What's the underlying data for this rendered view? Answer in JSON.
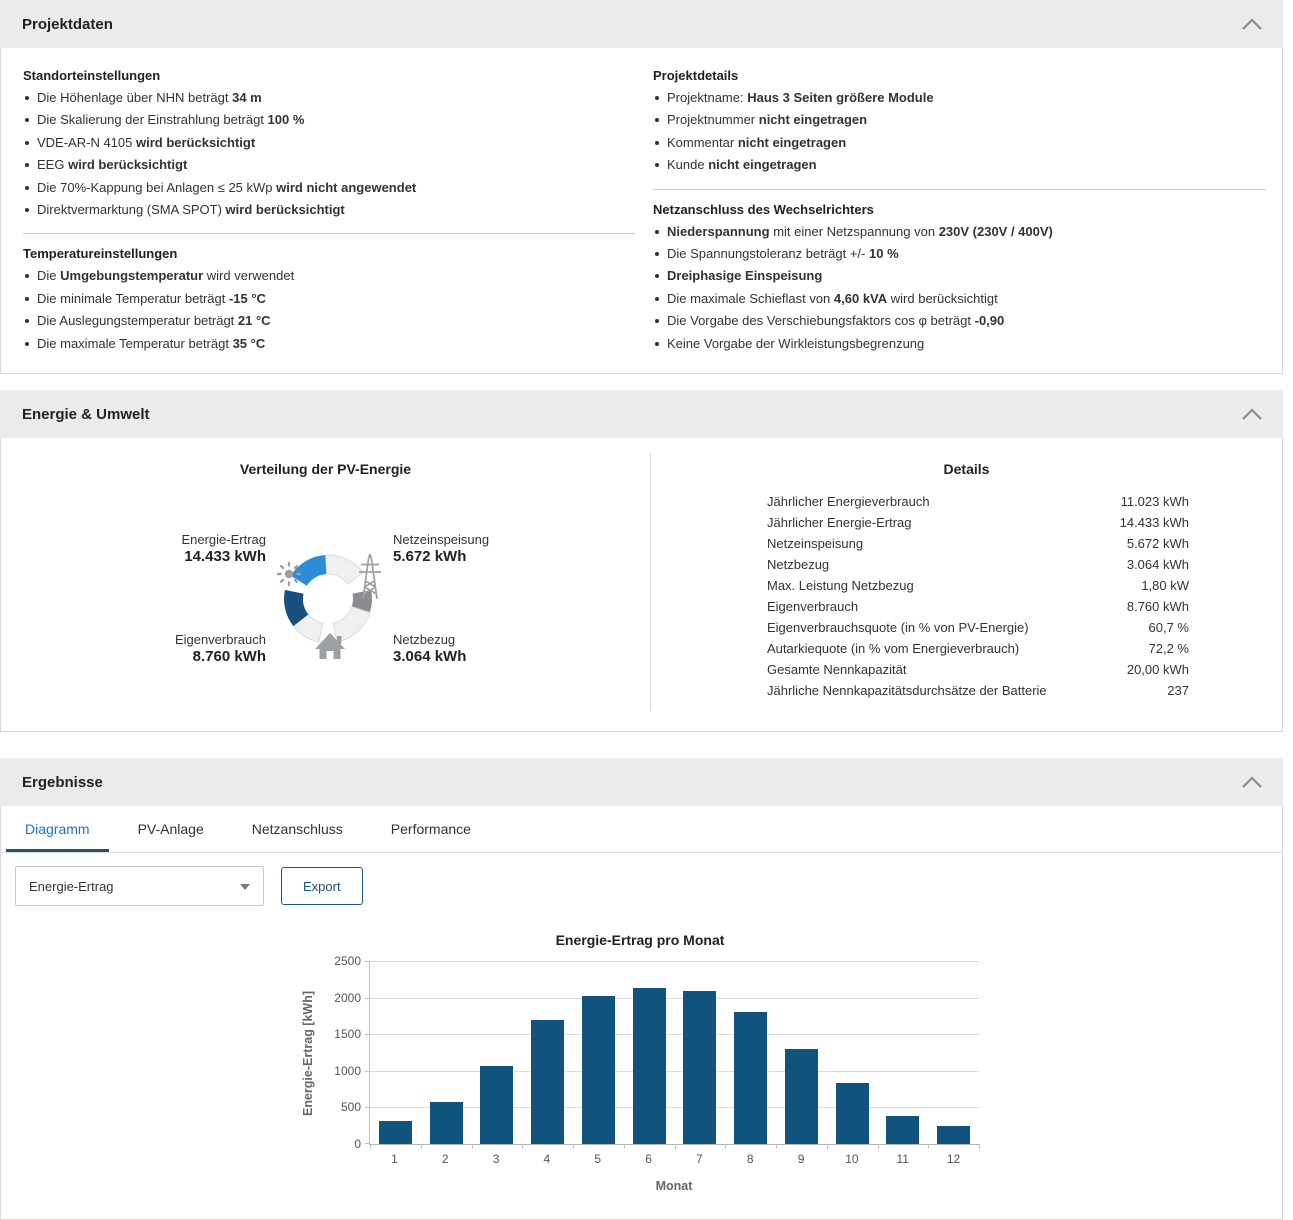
{
  "colors": {
    "accent_blue": "#2b8cd8",
    "dark_blue": "#1a4e7e",
    "mid_gray": "#8a8c8f",
    "light_segment": "#eff0f2",
    "light_segment_border": "#d9dbdd",
    "icon_gray": "#9ca0a3",
    "bar_blue": "#10547e",
    "active_tab": "#2272b9",
    "header_bg": "#ebebeb"
  },
  "projektdaten": {
    "title": "Projektdaten",
    "standort": {
      "heading": "Standorteinstellungen",
      "items": [
        [
          {
            "t": "Die Höhenlage über NHN beträgt ",
            "b": false
          },
          {
            "t": "34 m",
            "b": true
          }
        ],
        [
          {
            "t": "Die Skalierung der Einstrahlung beträgt ",
            "b": false
          },
          {
            "t": "100 %",
            "b": true
          }
        ],
        [
          {
            "t": "VDE-AR-N 4105 ",
            "b": false
          },
          {
            "t": "wird berücksichtigt",
            "b": true
          }
        ],
        [
          {
            "t": "EEG ",
            "b": false
          },
          {
            "t": "wird berücksichtigt",
            "b": true
          }
        ],
        [
          {
            "t": "Die 70%-Kappung bei Anlagen ≤ 25 kWp ",
            "b": false
          },
          {
            "t": "wird nicht angewendet",
            "b": true
          }
        ],
        [
          {
            "t": "Direktvermarktung (SMA SPOT) ",
            "b": false
          },
          {
            "t": "wird berücksichtigt",
            "b": true
          }
        ]
      ]
    },
    "temperatur": {
      "heading": "Temperatureinstellungen",
      "items": [
        [
          {
            "t": "Die ",
            "b": false
          },
          {
            "t": "Umgebungstemperatur",
            "b": true
          },
          {
            "t": " wird verwendet",
            "b": false
          }
        ],
        [
          {
            "t": "Die minimale Temperatur beträgt ",
            "b": false
          },
          {
            "t": "-15 °C",
            "b": true
          }
        ],
        [
          {
            "t": "Die Auslegungstemperatur beträgt ",
            "b": false
          },
          {
            "t": "21 °C",
            "b": true
          }
        ],
        [
          {
            "t": "Die maximale Temperatur beträgt ",
            "b": false
          },
          {
            "t": "35 °C",
            "b": true
          }
        ]
      ]
    },
    "details": {
      "heading": "Projektdetails",
      "items": [
        [
          {
            "t": "Projektname: ",
            "b": false
          },
          {
            "t": "Haus 3 Seiten größere Module",
            "b": true
          }
        ],
        [
          {
            "t": "Projektnummer ",
            "b": false
          },
          {
            "t": "nicht eingetragen",
            "b": true
          }
        ],
        [
          {
            "t": "Kommentar ",
            "b": false
          },
          {
            "t": "nicht eingetragen",
            "b": true
          }
        ],
        [
          {
            "t": "Kunde ",
            "b": false
          },
          {
            "t": "nicht eingetragen",
            "b": true
          }
        ]
      ]
    },
    "netzanschluss": {
      "heading": "Netzanschluss des Wechselrichters",
      "items": [
        [
          {
            "t": "Niederspannung",
            "b": true
          },
          {
            "t": " mit einer Netzspannung von ",
            "b": false
          },
          {
            "t": "230V (230V / 400V)",
            "b": true
          }
        ],
        [
          {
            "t": "Die Spannungstoleranz beträgt +/- ",
            "b": false
          },
          {
            "t": "10 %",
            "b": true
          }
        ],
        [
          {
            "t": "Dreiphasige Einspeisung",
            "b": true
          }
        ],
        [
          {
            "t": "Die maximale Schieflast von ",
            "b": false
          },
          {
            "t": "4,60 kVA",
            "b": true
          },
          {
            "t": " wird berücksichtigt",
            "b": false
          }
        ],
        [
          {
            "t": "Die Vorgabe des Verschiebungsfaktors cos φ beträgt ",
            "b": false
          },
          {
            "t": "-0,90",
            "b": true
          }
        ],
        [
          {
            "t": "Keine Vorgabe der Wirkleistungsbegrenzung",
            "b": false
          }
        ]
      ]
    }
  },
  "energie": {
    "title": "Energie & Umwelt",
    "donut_title": "Verteilung der PV-Energie",
    "donut_labels": {
      "ertrag": {
        "name": "Energie-Ertrag",
        "value": "14.433 kWh"
      },
      "einspeisung": {
        "name": "Netzeinspeisung",
        "value": "5.672 kWh"
      },
      "eigenverbrauch": {
        "name": "Eigenverbrauch",
        "value": "8.760 kWh"
      },
      "netzbezug": {
        "name": "Netzbezug",
        "value": "3.064 kWh"
      }
    },
    "details_title": "Details",
    "details_rows": [
      {
        "label": "Jährlicher Energieverbrauch",
        "value": "11.023 kWh"
      },
      {
        "label": "Jährlicher Energie-Ertrag",
        "value": "14.433 kWh"
      },
      {
        "label": "Netzeinspeisung",
        "value": "5.672 kWh"
      },
      {
        "label": "Netzbezug",
        "value": "3.064 kWh"
      },
      {
        "label": "Max. Leistung Netzbezug",
        "value": "1,80 kW"
      },
      {
        "label": "Eigenverbrauch",
        "value": "8.760 kWh"
      },
      {
        "label": "Eigenverbrauchsquote (in % von PV-Energie)",
        "value": "60,7 %"
      },
      {
        "label": "Autarkiequote (in % vom Energieverbrauch)",
        "value": "72,2 %"
      },
      {
        "label": "Gesamte Nennkapazität",
        "value": "20,00 kWh"
      },
      {
        "label": "Jährliche Nennkapazitätsdurchsätze der Batterie",
        "value": "237"
      }
    ]
  },
  "ergebnisse": {
    "title": "Ergebnisse",
    "tabs": [
      {
        "label": "Diagramm",
        "active": true
      },
      {
        "label": "PV-Anlage",
        "active": false
      },
      {
        "label": "Netzanschluss",
        "active": false
      },
      {
        "label": "Performance",
        "active": false
      }
    ],
    "dropdown_value": "Energie-Ertrag",
    "export_label": "Export"
  },
  "chart_data": {
    "type": "bar",
    "title": "Energie-Ertrag pro Monat",
    "categories": [
      "1",
      "2",
      "3",
      "4",
      "5",
      "6",
      "7",
      "8",
      "9",
      "10",
      "11",
      "12"
    ],
    "values": [
      310,
      570,
      1065,
      1700,
      2020,
      2135,
      2090,
      1810,
      1300,
      835,
      380,
      250
    ],
    "xlabel": "Monat",
    "ylabel": "Energie-Ertrag [kWh]",
    "ylim": [
      0,
      2500
    ],
    "y_ticks": [
      0,
      500,
      1000,
      1500,
      2000,
      2500
    ],
    "bar_color": "#10547e",
    "grid": true,
    "legend": "none"
  }
}
